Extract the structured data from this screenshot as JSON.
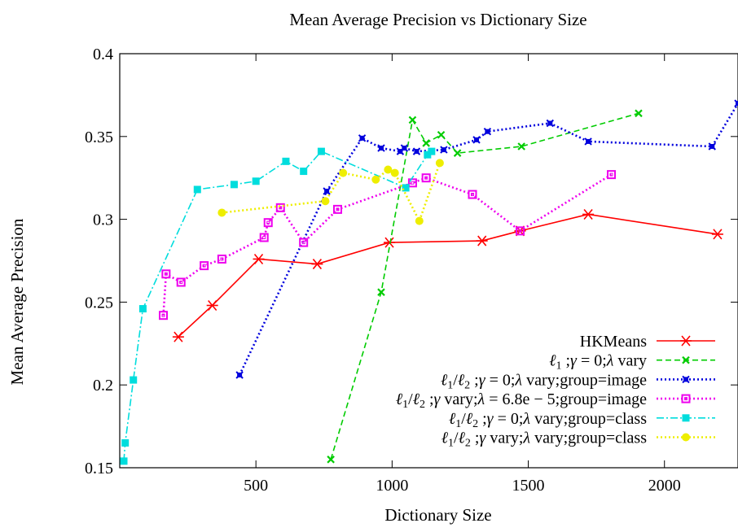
{
  "chart_data": {
    "type": "line",
    "title": "Mean Average Precision vs Dictionary Size",
    "xlabel": "Dictionary Size",
    "ylabel": "Mean Average Precision",
    "xlim": [
      0,
      2270
    ],
    "ylim": [
      0.15,
      0.4
    ],
    "xticks": [
      500,
      1000,
      1500,
      2000
    ],
    "xtick_labels": [
      "500",
      "1000",
      "1500",
      "2000"
    ],
    "yticks": [
      0.15,
      0.2,
      0.25,
      0.3,
      0.35,
      0.4
    ],
    "ytick_labels": [
      "0.15",
      "0.2",
      "0.25",
      "0.3",
      "0.35",
      "0.4"
    ],
    "grid": false,
    "legend_position": "bottom-right",
    "series": [
      {
        "name": "HKMeans",
        "color": "#ff0000",
        "dash": "solid",
        "marker": "star",
        "points": [
          [
            215,
            0.229
          ],
          [
            340,
            0.248
          ],
          [
            510,
            0.276
          ],
          [
            725,
            0.273
          ],
          [
            990,
            0.286
          ],
          [
            1330,
            0.287
          ],
          [
            1470,
            0.293
          ],
          [
            1720,
            0.303
          ],
          [
            2195,
            0.291
          ]
        ]
      },
      {
        "name": "ℓ1 ;γ = 0;λ vary",
        "legend_parts": [
          "ℓ",
          "1",
          " ;",
          "γ",
          " = 0;",
          "λ",
          " vary"
        ],
        "color": "#00cc00",
        "dash": "dashed",
        "marker": "x",
        "points": [
          [
            775,
            0.155
          ],
          [
            960,
            0.256
          ],
          [
            1075,
            0.36
          ],
          [
            1125,
            0.346
          ],
          [
            1180,
            0.351
          ],
          [
            1240,
            0.34
          ],
          [
            1475,
            0.344
          ],
          [
            1905,
            0.364
          ]
        ]
      },
      {
        "name": "ℓ1/ℓ2 ;γ = 0;λ vary;group=image",
        "legend_parts": [
          "ℓ",
          "1",
          "/",
          "ℓ",
          "2",
          " ;",
          "γ",
          " = 0;",
          "λ",
          " vary;group=image"
        ],
        "color": "#0000dd",
        "dash": "dotted",
        "marker": "asterisk",
        "points": [
          [
            440,
            0.206
          ],
          [
            760,
            0.317
          ],
          [
            890,
            0.349
          ],
          [
            960,
            0.343
          ],
          [
            1030,
            0.341
          ],
          [
            1045,
            0.343
          ],
          [
            1090,
            0.341
          ],
          [
            1190,
            0.342
          ],
          [
            1310,
            0.348
          ],
          [
            1350,
            0.353
          ],
          [
            1580,
            0.358
          ],
          [
            1720,
            0.347
          ],
          [
            2175,
            0.344
          ],
          [
            2270,
            0.37
          ]
        ]
      },
      {
        "name": "ℓ1/ℓ2 ;γ vary;λ = 6.8e − 5;group=image",
        "legend_parts": [
          "ℓ",
          "1",
          "/",
          "ℓ",
          "2",
          " ;",
          "γ",
          " vary;",
          "λ",
          " = 6.8e − 5;group=image"
        ],
        "color": "#ee00ee",
        "dash": "dotted",
        "marker": "square-open",
        "points": [
          [
            160,
            0.242
          ],
          [
            170,
            0.267
          ],
          [
            225,
            0.262
          ],
          [
            310,
            0.272
          ],
          [
            375,
            0.276
          ],
          [
            530,
            0.289
          ],
          [
            545,
            0.298
          ],
          [
            590,
            0.307
          ],
          [
            675,
            0.286
          ],
          [
            800,
            0.306
          ],
          [
            1075,
            0.322
          ],
          [
            1125,
            0.325
          ],
          [
            1295,
            0.315
          ],
          [
            1470,
            0.293
          ],
          [
            1805,
            0.327
          ]
        ]
      },
      {
        "name": "ℓ1/ℓ2 ;γ = 0;λ vary;group=class",
        "legend_parts": [
          "ℓ",
          "1",
          "/",
          "ℓ",
          "2",
          " ;",
          "γ",
          " = 0;",
          "λ",
          " vary;group=class"
        ],
        "color": "#00dddd",
        "dash": "dashdot",
        "marker": "square-filled",
        "points": [
          [
            15,
            0.154
          ],
          [
            20,
            0.165
          ],
          [
            50,
            0.203
          ],
          [
            85,
            0.246
          ],
          [
            285,
            0.318
          ],
          [
            420,
            0.321
          ],
          [
            500,
            0.323
          ],
          [
            610,
            0.335
          ],
          [
            675,
            0.329
          ],
          [
            740,
            0.341
          ],
          [
            1050,
            0.319
          ],
          [
            1130,
            0.339
          ],
          [
            1145,
            0.341
          ]
        ]
      },
      {
        "name": "ℓ1/ℓ2 ;γ vary;λ vary;group=class",
        "legend_parts": [
          "ℓ",
          "1",
          "/",
          "ℓ",
          "2",
          " ;",
          "γ",
          " vary;",
          "λ",
          " vary;group=class"
        ],
        "color": "#eeee00",
        "dash": "dotted",
        "marker": "circle-filled",
        "points": [
          [
            375,
            0.304
          ],
          [
            755,
            0.311
          ],
          [
            820,
            0.328
          ],
          [
            940,
            0.324
          ],
          [
            985,
            0.33
          ],
          [
            1010,
            0.328
          ],
          [
            1100,
            0.299
          ],
          [
            1175,
            0.334
          ]
        ]
      }
    ]
  }
}
